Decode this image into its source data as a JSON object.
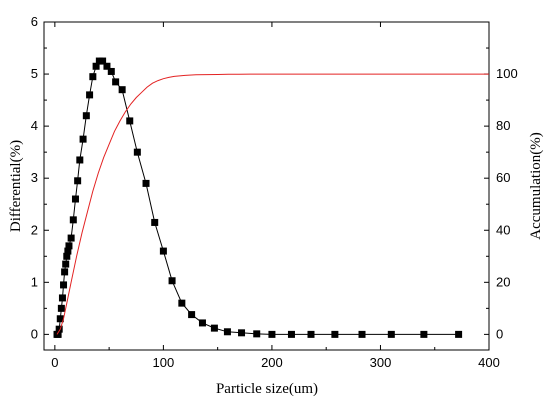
{
  "chart_data": {
    "type": "line",
    "title": "",
    "xlabel": "Particle size(um)",
    "ylabel_left": "Differential(%)",
    "ylabel_right": "Accumulation(%)",
    "xlim": [
      -10,
      400
    ],
    "ylim_left": [
      -0.3,
      6
    ],
    "ylim_right": [
      -6,
      120
    ],
    "x_ticks": [
      "0",
      "100",
      "200",
      "300",
      "400"
    ],
    "y_left_ticks": [
      "0",
      "1",
      "2",
      "3",
      "4",
      "5",
      "6"
    ],
    "y_right_ticks": [
      "0",
      "20",
      "40",
      "60",
      "80",
      "100"
    ],
    "grid": false,
    "legend": "none",
    "series": [
      {
        "axis": "left",
        "style": "black line with square markers",
        "color": "#000000",
        "x": [
          2,
          3,
          4,
          5,
          6,
          7,
          8,
          9,
          10,
          11,
          12,
          13,
          15,
          17,
          19,
          21,
          23,
          26,
          29,
          32,
          35,
          38,
          41,
          44,
          48,
          52,
          56,
          62,
          69,
          76,
          84,
          92,
          100,
          108,
          117,
          126,
          136,
          147,
          159,
          172,
          186,
          200,
          218,
          236,
          258,
          283,
          310,
          340,
          372
        ],
        "values": [
          0.0,
          0.0,
          0.1,
          0.3,
          0.5,
          0.7,
          0.95,
          1.2,
          1.35,
          1.5,
          1.6,
          1.7,
          1.85,
          2.2,
          2.6,
          2.95,
          3.35,
          3.75,
          4.2,
          4.6,
          4.95,
          5.15,
          5.25,
          5.25,
          5.15,
          5.05,
          4.85,
          4.7,
          4.1,
          3.5,
          2.9,
          2.15,
          1.6,
          1.03,
          0.6,
          0.38,
          0.22,
          0.12,
          0.05,
          0.03,
          0.01,
          0.0,
          0.0,
          0.0,
          0.0,
          0.0,
          0.0,
          0.0,
          0.0
        ]
      },
      {
        "axis": "right",
        "style": "red line",
        "color": "#e32222",
        "x": [
          2,
          5,
          8,
          11,
          15,
          20,
          25,
          30,
          35,
          40,
          45,
          50,
          55,
          60,
          65,
          70,
          75,
          80,
          85,
          90,
          95,
          100,
          105,
          110,
          120,
          130,
          140,
          150,
          160,
          170,
          180,
          190,
          200,
          300,
          400
        ],
        "values": [
          0,
          2,
          6,
          12,
          20,
          30,
          39,
          47,
          55,
          62,
          68,
          73,
          78,
          82,
          85.5,
          88.5,
          91,
          93,
          95,
          96.5,
          97.5,
          98.2,
          98.7,
          99.1,
          99.5,
          99.7,
          99.8,
          99.85,
          99.9,
          99.95,
          100,
          100,
          100,
          100,
          100
        ]
      }
    ]
  }
}
